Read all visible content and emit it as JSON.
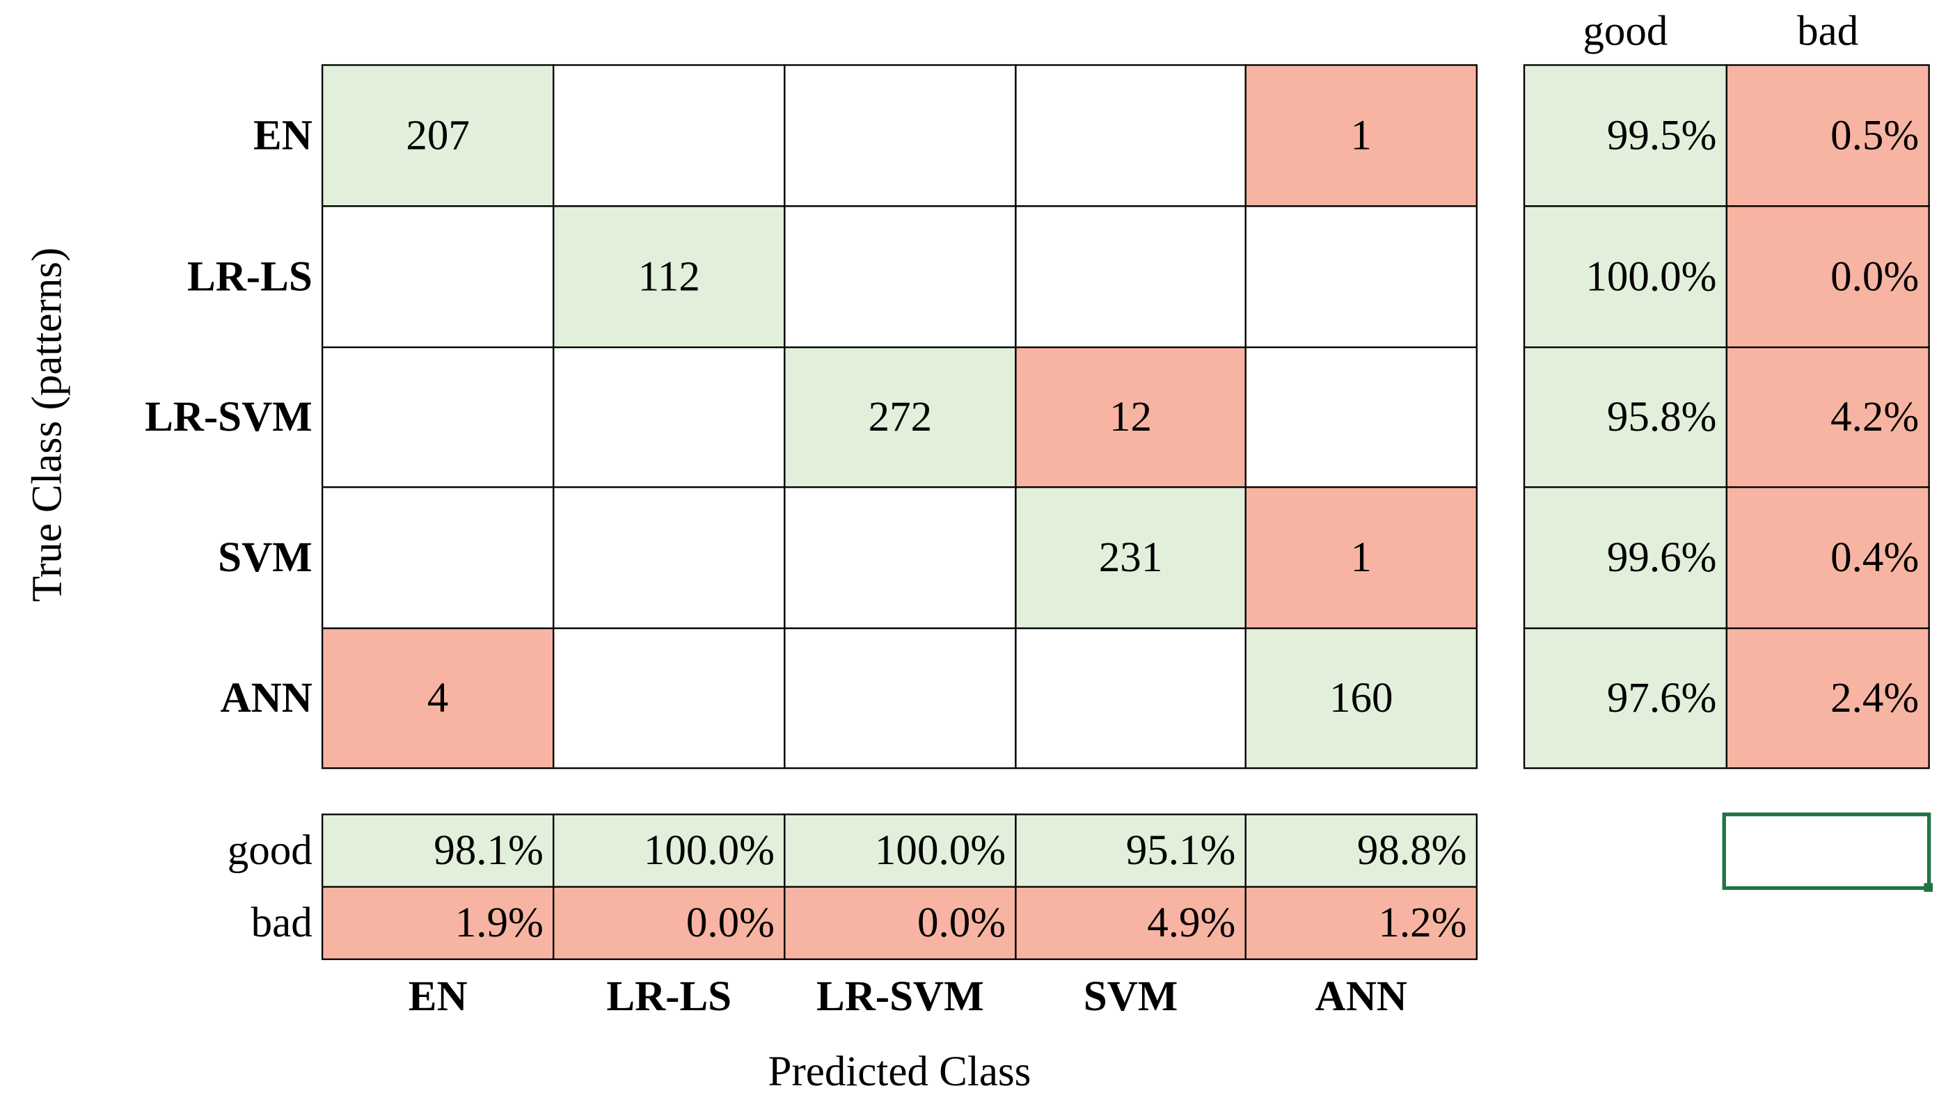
{
  "y_axis_title": "True Class (patterns)",
  "x_axis_title": "Predicted Class",
  "classes": [
    "EN",
    "LR-LS",
    "LR-SVM",
    "SVM",
    "ANN"
  ],
  "good_color": "#e2efda",
  "bad_color": "#f8b4a2",
  "matrix": [
    [
      207,
      null,
      null,
      null,
      1
    ],
    [
      null,
      112,
      null,
      null,
      null
    ],
    [
      null,
      null,
      272,
      12,
      null
    ],
    [
      null,
      null,
      null,
      231,
      1
    ],
    [
      4,
      null,
      null,
      null,
      160
    ]
  ],
  "row_summary": {
    "headers": [
      "good",
      "bad"
    ],
    "rows": [
      [
        "99.5%",
        "0.5%"
      ],
      [
        "100.0%",
        "0.0%"
      ],
      [
        "95.8%",
        "4.2%"
      ],
      [
        "99.6%",
        "0.4%"
      ],
      [
        "97.6%",
        "2.4%"
      ]
    ]
  },
  "column_summary": {
    "labels": [
      "good",
      "bad"
    ],
    "good": [
      "98.1%",
      "100.0%",
      "100.0%",
      "95.1%",
      "98.8%"
    ],
    "bad": [
      "1.9%",
      "0.0%",
      "0.0%",
      "4.9%",
      "1.2%"
    ]
  }
}
